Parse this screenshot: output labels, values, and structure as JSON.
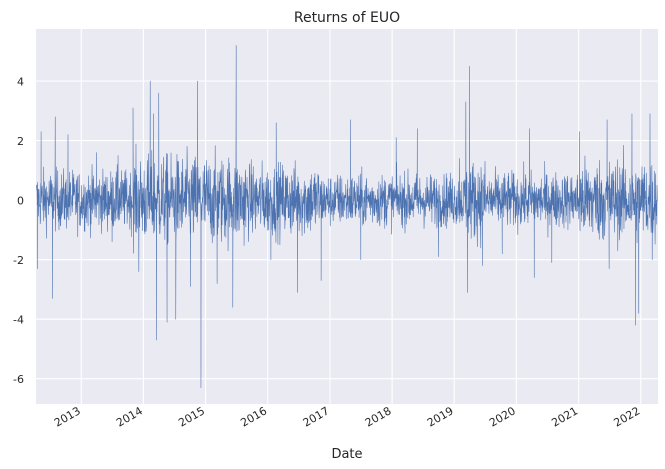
{
  "chart_data": {
    "type": "line",
    "title": "Returns of EUO",
    "xlabel": "Date",
    "ylabel": "",
    "x_range": [
      "2012-04-10",
      "2022-04-12"
    ],
    "ylim": [
      -6.85,
      5.75
    ],
    "yticks": [
      -6,
      -4,
      -2,
      0,
      2,
      4
    ],
    "xticks": [
      {
        "label": "2013",
        "date": "2013-01-01"
      },
      {
        "label": "2014",
        "date": "2014-01-01"
      },
      {
        "label": "2015",
        "date": "2015-01-01"
      },
      {
        "label": "2016",
        "date": "2016-01-01"
      },
      {
        "label": "2017",
        "date": "2017-01-01"
      },
      {
        "label": "2018",
        "date": "2018-01-01"
      },
      {
        "label": "2019",
        "date": "2019-01-01"
      },
      {
        "label": "2020",
        "date": "2020-01-01"
      },
      {
        "label": "2021",
        "date": "2021-01-01"
      },
      {
        "label": "2022",
        "date": "2022-01-01"
      }
    ],
    "grid": true,
    "legend": "none",
    "style": {
      "background": "#eaeaf2",
      "grid": "#ffffff",
      "line": "#4c72b0"
    },
    "series": [
      {
        "color": "#4c72b0",
        "points": [
          [
            "2012-04-20",
            -2.3
          ],
          [
            "2012-05-10",
            2.3
          ],
          [
            "2012-07-15",
            -3.3
          ],
          [
            "2012-08-01",
            2.8
          ],
          [
            "2012-10-15",
            2.2
          ],
          [
            "2013-04-01",
            1.6
          ],
          [
            "2013-07-01",
            -1.4
          ],
          [
            "2013-08-05",
            1.5
          ],
          [
            "2013-11-01",
            3.1
          ],
          [
            "2013-12-05",
            -2.4
          ],
          [
            "2014-02-10",
            4.0
          ],
          [
            "2014-03-01",
            2.9
          ],
          [
            "2014-03-20",
            -4.7
          ],
          [
            "2014-04-01",
            3.6
          ],
          [
            "2014-05-20",
            -4.1
          ],
          [
            "2014-07-10",
            -4.0
          ],
          [
            "2014-10-05",
            -2.9
          ],
          [
            "2014-11-15",
            4.0
          ],
          [
            "2014-12-05",
            -6.3
          ],
          [
            "2015-03-10",
            -2.8
          ],
          [
            "2015-06-10",
            -3.6
          ],
          [
            "2015-06-30",
            5.2
          ],
          [
            "2016-01-20",
            -2.0
          ],
          [
            "2016-02-20",
            2.6
          ],
          [
            "2016-06-24",
            -3.1
          ],
          [
            "2016-11-10",
            -2.7
          ],
          [
            "2017-05-01",
            2.7
          ],
          [
            "2017-07-01",
            -2.0
          ],
          [
            "2018-01-25",
            2.1
          ],
          [
            "2018-05-29",
            2.4
          ],
          [
            "2018-10-01",
            -1.9
          ],
          [
            "2019-02-01",
            1.4
          ],
          [
            "2019-03-10",
            3.3
          ],
          [
            "2019-03-20",
            -3.1
          ],
          [
            "2019-04-01",
            4.5
          ],
          [
            "2019-06-15",
            -2.2
          ],
          [
            "2019-10-10",
            -1.8
          ],
          [
            "2020-03-18",
            2.4
          ],
          [
            "2020-04-15",
            -2.6
          ],
          [
            "2020-07-27",
            -2.1
          ],
          [
            "2021-01-06",
            2.3
          ],
          [
            "2021-06-17",
            2.7
          ],
          [
            "2021-06-29",
            -2.3
          ],
          [
            "2021-11-10",
            2.9
          ],
          [
            "2021-11-30",
            -4.2
          ],
          [
            "2021-12-20",
            -3.8
          ],
          [
            "2022-02-24",
            2.9
          ],
          [
            "2022-03-09",
            -2.0
          ]
        ]
      }
    ]
  }
}
